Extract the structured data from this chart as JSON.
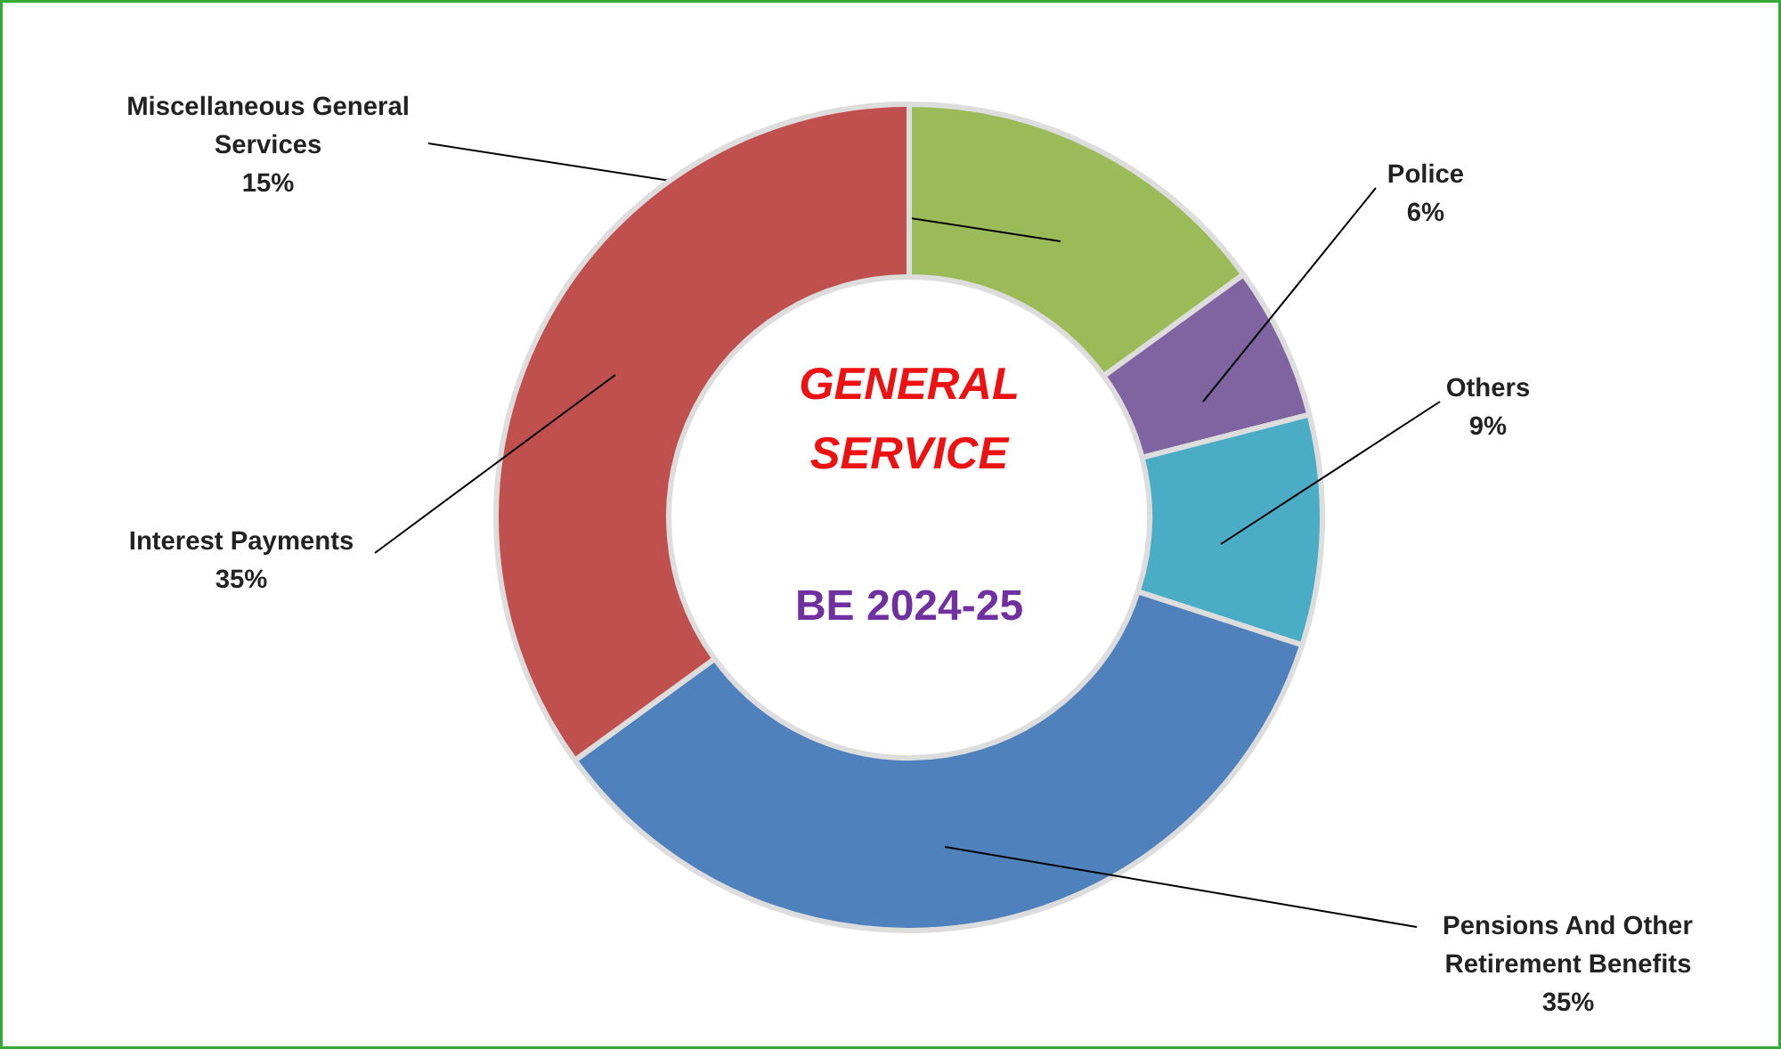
{
  "chart_data": {
    "type": "donut",
    "title": "GENERAL SERVICE",
    "subtitle": "BE 2024-25",
    "categories": [
      "Miscellaneous General Services",
      "Police",
      "Others",
      "Pensions And Other Retirement Benefits",
      "Interest Payments"
    ],
    "values": [
      15,
      6,
      9,
      35,
      35
    ],
    "value_labels": [
      "15%",
      "6%",
      "9%",
      "35%",
      "35%"
    ],
    "colors": [
      "#9bbb59",
      "#8064a2",
      "#4bacc6",
      "#4f81bd",
      "#c0504d"
    ]
  }
}
